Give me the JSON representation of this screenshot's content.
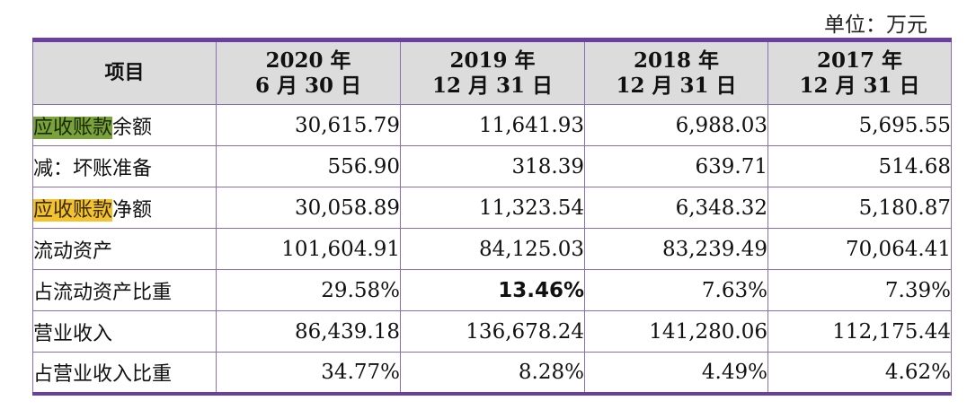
{
  "unit_label": "单位：万元",
  "header": {
    "item": "项目",
    "columns": [
      {
        "line1": "2020 年",
        "line2": "6 月 30 日"
      },
      {
        "line1": "2019 年",
        "line2": "12 月 31 日"
      },
      {
        "line1": "2018 年",
        "line2": "12 月 31 日"
      },
      {
        "line1": "2017 年",
        "line2": "12 月 31 日"
      }
    ]
  },
  "rows": [
    {
      "label_highlight": "应收账款",
      "label_rest": "余额",
      "highlight_color": "#7aa23a",
      "values": [
        "30,615.79",
        "11,641.93",
        "6,988.03",
        "5,695.55"
      ]
    },
    {
      "label_highlight": "",
      "label_rest": "减：坏账准备",
      "values": [
        "556.90",
        "318.39",
        "639.71",
        "514.68"
      ]
    },
    {
      "label_highlight": "应收账款",
      "label_rest": "净额",
      "highlight_color": "#f2c230",
      "values": [
        "30,058.89",
        "11,323.54",
        "6,348.32",
        "5,180.87"
      ]
    },
    {
      "label_highlight": "",
      "label_rest": "流动资产",
      "values": [
        "101,604.91",
        "84,125.03",
        "83,239.49",
        "70,064.41"
      ]
    },
    {
      "label_highlight": "",
      "label_rest": "占流动资产比重",
      "values": [
        "29.58%",
        "13.46%",
        "7.63%",
        "7.39%"
      ]
    },
    {
      "label_highlight": "",
      "label_rest": "营业收入",
      "values": [
        "86,439.18",
        "136,678.24",
        "141,280.06",
        "112,175.44"
      ]
    },
    {
      "label_highlight": "",
      "label_rest": "占营业收入比重",
      "values": [
        "34.77%",
        "8.28%",
        "4.49%",
        "4.62%"
      ]
    }
  ],
  "colors": {
    "border": "#6a3fa0",
    "header_bg": "#dcdcdc"
  }
}
